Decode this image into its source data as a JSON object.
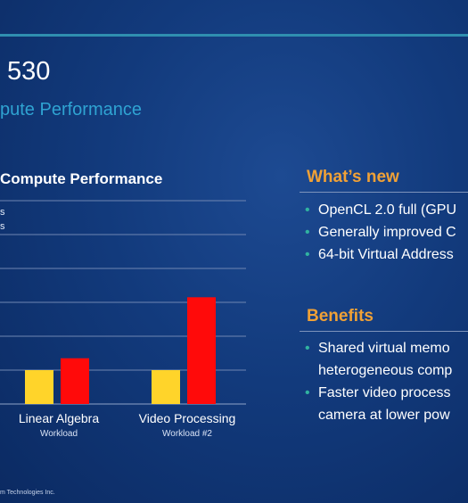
{
  "slide": {
    "title": "530",
    "subtitle": "pute Performance",
    "footer": "m Technologies Inc."
  },
  "chart_data": {
    "type": "bar",
    "title": "Compute Performance",
    "legend": [
      "s",
      "s"
    ],
    "categories": [
      "Linear Algebra",
      "Video Processing"
    ],
    "category_sublabels": [
      "Workload",
      "Workload #2"
    ],
    "series": [
      {
        "color": "#ffd42a",
        "values": [
          1.0,
          1.0
        ]
      },
      {
        "color": "#ff0a0a",
        "values": [
          1.35,
          3.15
        ]
      }
    ],
    "ylim": [
      0,
      4
    ],
    "grid": true,
    "legend_position": "top-left"
  },
  "right_panel": {
    "whats_new": {
      "heading": "What’s new",
      "bullets": [
        "OpenCL 2.0 full (GPU",
        "Generally improved C",
        "64-bit Virtual Address"
      ]
    },
    "benefits": {
      "heading": "Benefits",
      "bullets": [
        {
          "line1": "Shared virtual memo",
          "line2": "heterogeneous comp"
        },
        {
          "line1": "Faster video process",
          "line2": "camera at lower pow"
        }
      ]
    },
    "bullet_color": "#31b3a0",
    "heading_color": "#f0a136"
  }
}
